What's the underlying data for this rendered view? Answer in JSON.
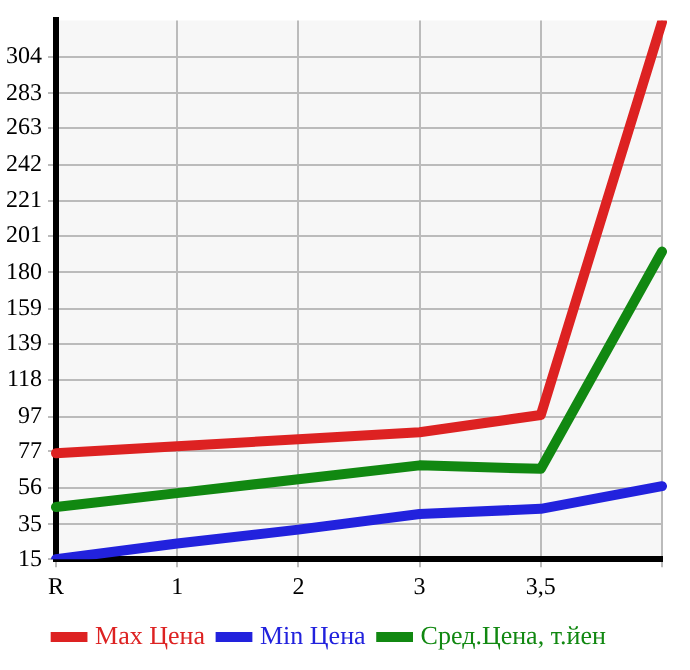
{
  "chart_data": {
    "type": "line",
    "categories": [
      "R",
      "1",
      "2",
      "3",
      "3,5",
      null
    ],
    "series": [
      {
        "name": "Max Цена",
        "color": "#dd2222",
        "values": [
          76,
          80,
          84,
          88,
          98,
          324
        ]
      },
      {
        "name": "Min Цена",
        "color": "#2222dd",
        "values": [
          15,
          24,
          32,
          41,
          44,
          57
        ]
      },
      {
        "name": "Сред.Цена, т.йен",
        "color": "#118811",
        "values": [
          45,
          53,
          61,
          69,
          67,
          192
        ]
      }
    ],
    "ylim": [
      15,
      325
    ],
    "yticks": [
      15,
      35,
      56,
      77,
      97,
      118,
      139,
      159,
      180,
      201,
      221,
      242,
      263,
      283,
      304
    ],
    "grid": true,
    "legend": "bottom",
    "marker": "none",
    "line_style": "solid"
  }
}
